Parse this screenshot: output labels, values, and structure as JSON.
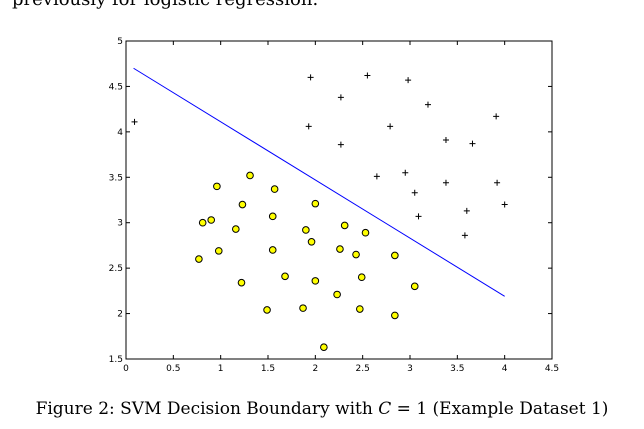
{
  "document": {
    "intro_text": "previously for logistic regression.",
    "caption": {
      "prefix": "Figure 2: SVM Decision Boundary with ",
      "variable": "C",
      "equals": " = 1",
      "suffix": " (Example Dataset 1)"
    }
  },
  "chart_data": {
    "type": "scatter",
    "title": "",
    "xlabel": "",
    "ylabel": "",
    "xlim": [
      0,
      4.5
    ],
    "ylim": [
      1.5,
      5
    ],
    "grid": false,
    "x_ticks": [
      0,
      0.5,
      1,
      1.5,
      2,
      2.5,
      3,
      3.5,
      4,
      4.5
    ],
    "x_tick_labels": [
      "0",
      "0.5",
      "1",
      "1.5",
      "2",
      "2.5",
      "3",
      "3.5",
      "4",
      "4.5"
    ],
    "y_ticks": [
      1.5,
      2,
      2.5,
      3,
      3.5,
      4,
      4.5,
      5
    ],
    "y_tick_labels": [
      "1.5",
      "2",
      "2.5",
      "3",
      "3.5",
      "4",
      "4.5",
      "5"
    ],
    "series": [
      {
        "name": "positive",
        "marker": "plus",
        "color": "#000000",
        "points": [
          [
            0.09,
            4.11
          ],
          [
            1.95,
            4.6
          ],
          [
            2.55,
            4.62
          ],
          [
            2.98,
            4.57
          ],
          [
            2.27,
            4.38
          ],
          [
            3.19,
            4.3
          ],
          [
            3.91,
            4.17
          ],
          [
            1.93,
            4.06
          ],
          [
            2.79,
            4.06
          ],
          [
            2.27,
            3.86
          ],
          [
            3.38,
            3.91
          ],
          [
            3.66,
            3.87
          ],
          [
            2.65,
            3.51
          ],
          [
            2.95,
            3.55
          ],
          [
            3.05,
            3.33
          ],
          [
            3.38,
            3.44
          ],
          [
            3.92,
            3.44
          ],
          [
            4.0,
            3.2
          ],
          [
            3.6,
            3.13
          ],
          [
            3.09,
            3.07
          ],
          [
            3.58,
            2.86
          ]
        ]
      },
      {
        "name": "negative",
        "marker": "circle",
        "color": "#ffff00",
        "edge": "#000000",
        "points": [
          [
            0.96,
            3.4
          ],
          [
            1.31,
            3.52
          ],
          [
            1.57,
            3.37
          ],
          [
            1.23,
            3.2
          ],
          [
            2.0,
            3.21
          ],
          [
            0.9,
            3.03
          ],
          [
            0.81,
            3.0
          ],
          [
            1.55,
            3.07
          ],
          [
            1.16,
            2.93
          ],
          [
            1.9,
            2.92
          ],
          [
            2.31,
            2.97
          ],
          [
            2.53,
            2.89
          ],
          [
            1.96,
            2.79
          ],
          [
            0.98,
            2.69
          ],
          [
            1.55,
            2.7
          ],
          [
            2.26,
            2.71
          ],
          [
            2.43,
            2.65
          ],
          [
            2.84,
            2.64
          ],
          [
            0.77,
            2.6
          ],
          [
            1.68,
            2.41
          ],
          [
            2.0,
            2.36
          ],
          [
            2.49,
            2.4
          ],
          [
            1.22,
            2.34
          ],
          [
            3.05,
            2.3
          ],
          [
            2.23,
            2.21
          ],
          [
            1.49,
            2.04
          ],
          [
            1.87,
            2.06
          ],
          [
            2.47,
            2.05
          ],
          [
            2.84,
            1.98
          ],
          [
            2.09,
            1.63
          ]
        ]
      }
    ],
    "decision_boundary": {
      "color": "#0000ff",
      "points": [
        [
          0.08,
          4.7
        ],
        [
          4.0,
          2.19
        ]
      ]
    }
  }
}
